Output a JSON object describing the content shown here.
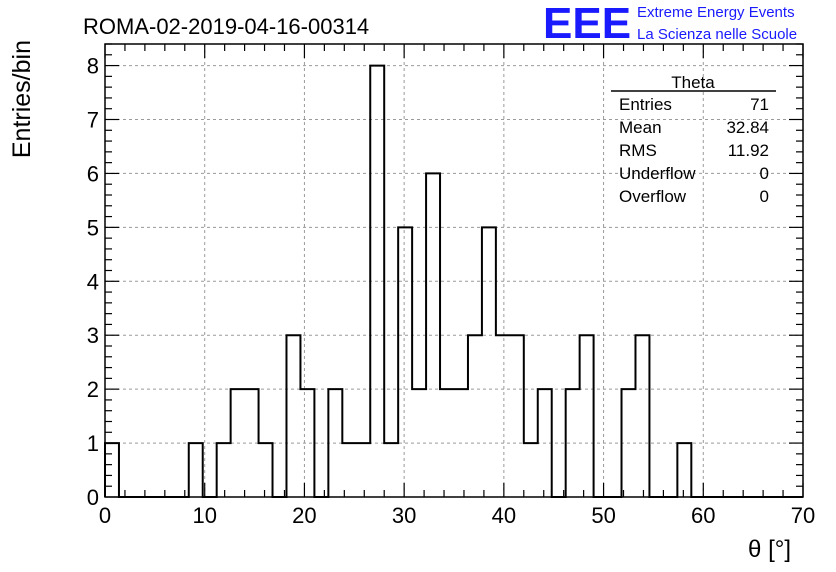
{
  "run_title": "ROMA-02-2019-04-16-00314",
  "logo": {
    "mark": "EEE",
    "line1": "Extreme Energy Events",
    "line2": "La Scienza nelle Scuole",
    "color": "#1a1aff"
  },
  "stats_box": {
    "title": "Theta",
    "rows": [
      {
        "label": "Entries",
        "value": "71"
      },
      {
        "label": "Mean",
        "value": "32.84"
      },
      {
        "label": "RMS",
        "value": "11.92"
      },
      {
        "label": "Underflow",
        "value": "0"
      },
      {
        "label": "Overflow",
        "value": "0"
      }
    ]
  },
  "chart_data": {
    "type": "bar",
    "xlabel": "θ [°]",
    "ylabel": "Entries/bin",
    "xlim": [
      0,
      70
    ],
    "ylim": [
      0,
      8.4
    ],
    "x_ticks": [
      0,
      10,
      20,
      30,
      40,
      50,
      60,
      70
    ],
    "y_ticks": [
      0,
      1,
      2,
      3,
      4,
      5,
      6,
      7,
      8
    ],
    "grid": true,
    "bin_width": 1.4,
    "counts": [
      1,
      0,
      0,
      0,
      0,
      0,
      1,
      0,
      1,
      2,
      2,
      1,
      0,
      3,
      2,
      0,
      2,
      1,
      1,
      8,
      1,
      5,
      2,
      6,
      2,
      2,
      3,
      5,
      3,
      3,
      1,
      2,
      0,
      2,
      3,
      0,
      0,
      2,
      3,
      0,
      0,
      1,
      0,
      0,
      0,
      0,
      0,
      0,
      0,
      0
    ],
    "line_color": "#000000"
  }
}
